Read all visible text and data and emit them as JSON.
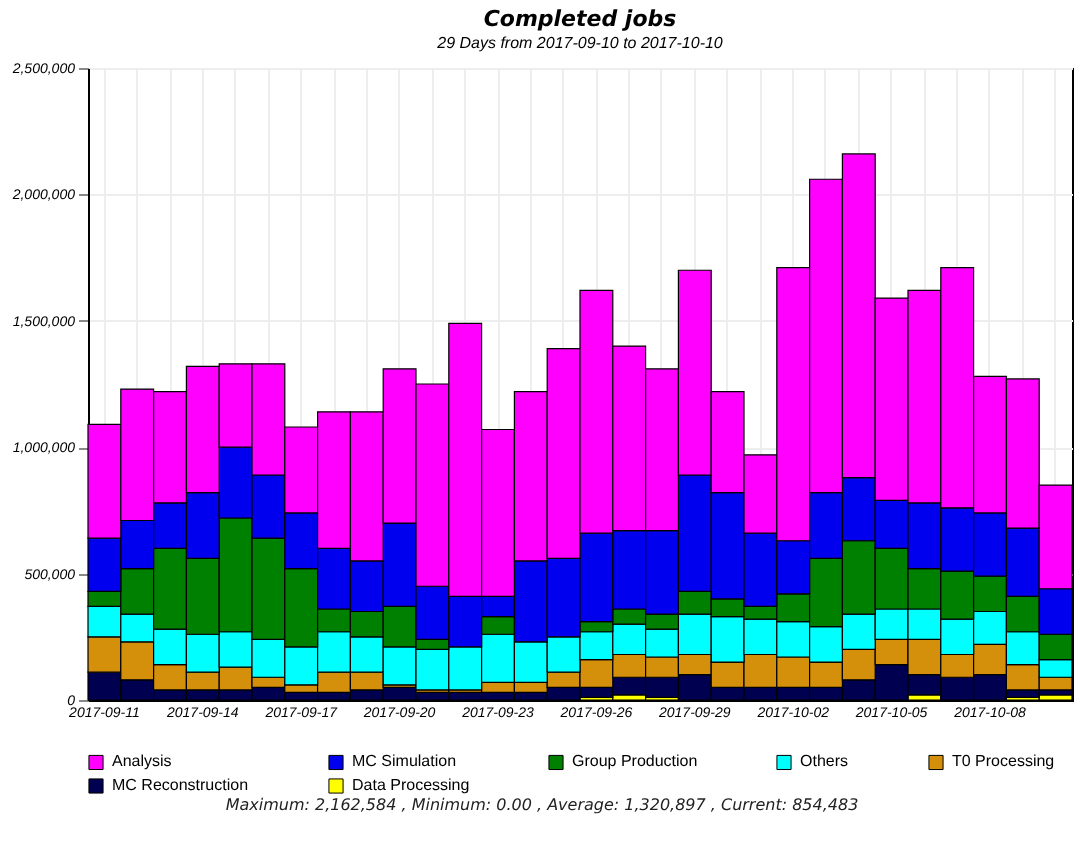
{
  "chart_data": {
    "type": "bar",
    "stacked": true,
    "title": "Completed jobs",
    "subtitle": "29 Days from 2017-09-10 to 2017-10-10",
    "categories": [
      "2017-09-11",
      null,
      null,
      "2017-09-14",
      null,
      null,
      "2017-09-17",
      null,
      null,
      "2017-09-20",
      null,
      null,
      "2017-09-23",
      null,
      null,
      "2017-09-26",
      null,
      null,
      "2017-09-29",
      null,
      null,
      "2017-10-02",
      null,
      null,
      "2017-10-05",
      null,
      null,
      "2017-10-08",
      null,
      null
    ],
    "series": [
      {
        "name": "Data Processing",
        "color": "#ffff00",
        "values": [
          0,
          0,
          0,
          0,
          0,
          0,
          0,
          0,
          0,
          0,
          0,
          0,
          0,
          0,
          0,
          10000,
          20000,
          10000,
          0,
          0,
          0,
          0,
          0,
          0,
          0,
          20000,
          0,
          0,
          10000,
          20000
        ]
      },
      {
        "name": "MC Reconstruction",
        "color": "#000050",
        "values": [
          110000,
          80000,
          40000,
          40000,
          40000,
          50000,
          30000,
          30000,
          40000,
          50000,
          30000,
          30000,
          30000,
          30000,
          50000,
          40000,
          70000,
          80000,
          100000,
          50000,
          50000,
          50000,
          50000,
          80000,
          140000,
          80000,
          90000,
          100000,
          30000,
          20000
        ]
      },
      {
        "name": "T0 Processing",
        "color": "#d4900a",
        "values": [
          140000,
          150000,
          100000,
          70000,
          90000,
          40000,
          30000,
          80000,
          70000,
          10000,
          10000,
          10000,
          40000,
          40000,
          60000,
          110000,
          90000,
          80000,
          80000,
          100000,
          130000,
          120000,
          100000,
          120000,
          100000,
          140000,
          90000,
          120000,
          100000,
          50000
        ]
      },
      {
        "name": "Others",
        "color": "#00ffff",
        "values": [
          120000,
          110000,
          140000,
          150000,
          140000,
          150000,
          150000,
          160000,
          140000,
          150000,
          160000,
          170000,
          190000,
          160000,
          140000,
          110000,
          120000,
          110000,
          160000,
          180000,
          140000,
          140000,
          140000,
          140000,
          120000,
          120000,
          140000,
          130000,
          130000,
          70000
        ]
      },
      {
        "name": "Group Production",
        "color": "#008000",
        "values": [
          60000,
          180000,
          320000,
          300000,
          450000,
          400000,
          310000,
          90000,
          100000,
          160000,
          40000,
          0,
          70000,
          0,
          0,
          40000,
          60000,
          60000,
          90000,
          70000,
          50000,
          110000,
          270000,
          290000,
          240000,
          160000,
          190000,
          140000,
          140000,
          100000
        ]
      },
      {
        "name": "MC Simulation",
        "color": "#0000ee",
        "values": [
          210000,
          190000,
          180000,
          260000,
          280000,
          250000,
          220000,
          240000,
          200000,
          330000,
          210000,
          200000,
          80000,
          320000,
          310000,
          350000,
          310000,
          330000,
          460000,
          420000,
          290000,
          210000,
          260000,
          250000,
          190000,
          260000,
          250000,
          250000,
          270000,
          180000
        ]
      },
      {
        "name": "Analysis",
        "color": "#ff00ff",
        "values": [
          450000,
          520000,
          440000,
          500000,
          330000,
          440000,
          340000,
          540000,
          590000,
          610000,
          800000,
          1080000,
          660000,
          670000,
          830000,
          960000,
          730000,
          640000,
          810000,
          400000,
          310000,
          1080000,
          1240000,
          1280000,
          800000,
          840000,
          950000,
          540000,
          590000,
          410000
        ]
      }
    ],
    "ylim": [
      0,
      2500000
    ],
    "yticks": [
      0,
      {
        "value": 500000,
        "label": "500,000"
      },
      {
        "value": 1000000,
        "label": "1,000,000"
      },
      {
        "value": 1500000,
        "label": "1,500,000"
      },
      {
        "value": 2000000,
        "label": "2,000,000"
      },
      {
        "value": 2500000,
        "label": "2,500,000"
      }
    ],
    "grid": true,
    "legend": "bottom",
    "annotations": [
      "Maximum: 2,162,584 , Minimum: 0.00 , Average: 1,320,897 , Current: 854,483"
    ]
  }
}
